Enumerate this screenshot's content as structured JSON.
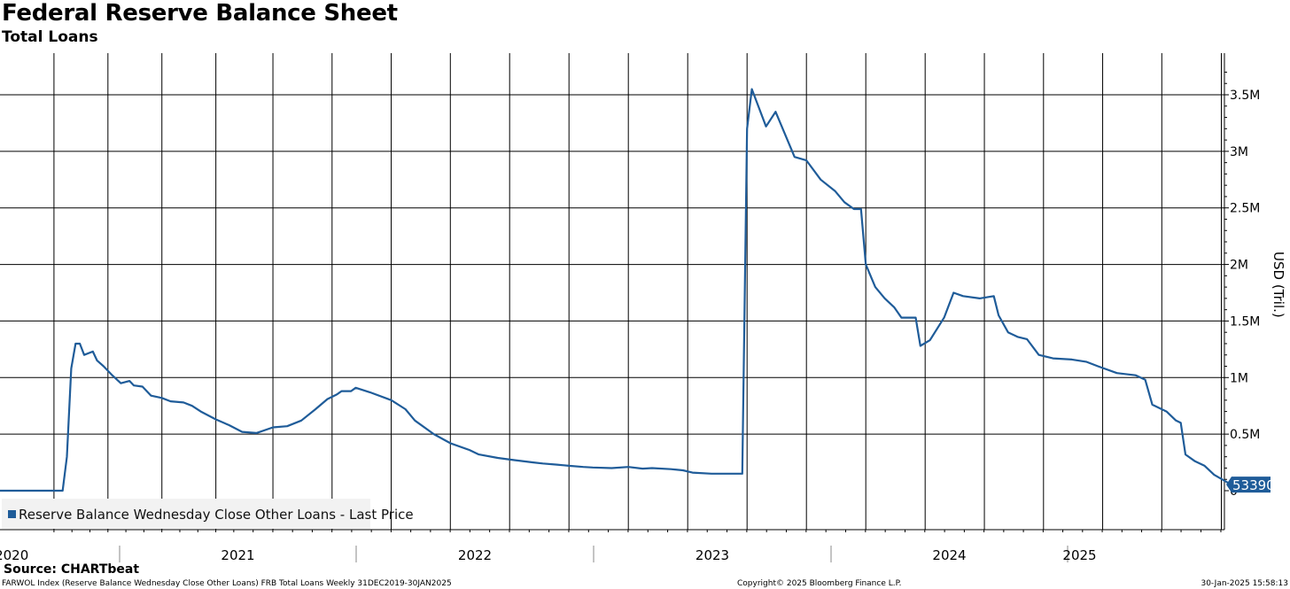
{
  "header": {
    "title": "Federal Reserve Balance Sheet",
    "subtitle": "Total Loans"
  },
  "footer": {
    "source": "Source: CHARTbeat",
    "index_info": "FARWOL Index (Reserve Balance Wednesday Close Other Loans) FRB Total Loans  Weekly 31DEC2019-30JAN2025",
    "copyright": "Copyright© 2025 Bloomberg Finance L.P.",
    "timestamp": "30-Jan-2025 15:58:13"
  },
  "colors": {
    "series": "#1f5c99",
    "grid": "#000000",
    "legend_bg": "#f2f2f2",
    "last_price_badge": "#1f5c99"
  },
  "chart_data": {
    "type": "line",
    "title": "Federal Reserve Balance Sheet",
    "subtitle": "Total Loans",
    "ylabel": "USD (Tril.)",
    "ylim": [
      0,
      3800000
    ],
    "y_ticks": [
      0,
      500000,
      1000000,
      1500000,
      2000000,
      2500000,
      3000000,
      3500000
    ],
    "y_tick_labels": [
      "0",
      "0.5M",
      "1M",
      "1.5M",
      "2M",
      "2.5M",
      "3M",
      "3.5M"
    ],
    "x_range": [
      2019.9,
      2025.2
    ],
    "x_year_labels": [
      {
        "label": "2020",
        "center": 2020.5
      },
      {
        "label": "2021",
        "center": 2021.5
      },
      {
        "label": "2022",
        "center": 2022.5
      },
      {
        "label": "2023",
        "center": 2023.5
      },
      {
        "label": "2024",
        "center": 2024.5
      },
      {
        "label": "2025",
        "center": 2025.05
      }
    ],
    "x_year_boundaries": [
      2021.0,
      2022.0,
      2023.0,
      2024.0,
      2025.0
    ],
    "grid": true,
    "legend": {
      "position": "bottom-left",
      "entries": [
        "Reserve Balance Wednesday Close Other Loans - Last Price"
      ]
    },
    "last_price": "53390",
    "series": [
      {
        "name": "Reserve Balance Wednesday Close Other Loans - Last Price",
        "points": [
          [
            2019.9,
            0
          ],
          [
            2020.19,
            0
          ],
          [
            2020.21,
            300000
          ],
          [
            2020.23,
            1080000
          ],
          [
            2020.25,
            1300000
          ],
          [
            2020.27,
            1300000
          ],
          [
            2020.29,
            1200000
          ],
          [
            2020.33,
            1230000
          ],
          [
            2020.35,
            1150000
          ],
          [
            2020.38,
            1100000
          ],
          [
            2020.42,
            1020000
          ],
          [
            2020.46,
            950000
          ],
          [
            2020.5,
            970000
          ],
          [
            2020.52,
            930000
          ],
          [
            2020.56,
            920000
          ],
          [
            2020.6,
            840000
          ],
          [
            2020.65,
            820000
          ],
          [
            2020.69,
            790000
          ],
          [
            2020.75,
            780000
          ],
          [
            2020.79,
            750000
          ],
          [
            2020.83,
            700000
          ],
          [
            2020.9,
            630000
          ],
          [
            2020.96,
            580000
          ],
          [
            2021.02,
            520000
          ],
          [
            2021.08,
            510000
          ],
          [
            2021.15,
            560000
          ],
          [
            2021.21,
            570000
          ],
          [
            2021.27,
            620000
          ],
          [
            2021.33,
            720000
          ],
          [
            2021.38,
            810000
          ],
          [
            2021.42,
            850000
          ],
          [
            2021.44,
            880000
          ],
          [
            2021.48,
            880000
          ],
          [
            2021.5,
            910000
          ],
          [
            2021.56,
            870000
          ],
          [
            2021.65,
            800000
          ],
          [
            2021.71,
            720000
          ],
          [
            2021.75,
            620000
          ],
          [
            2021.83,
            500000
          ],
          [
            2021.9,
            420000
          ],
          [
            2021.98,
            360000
          ],
          [
            2022.02,
            320000
          ],
          [
            2022.1,
            290000
          ],
          [
            2022.17,
            270000
          ],
          [
            2022.25,
            250000
          ],
          [
            2022.29,
            240000
          ],
          [
            2022.35,
            230000
          ],
          [
            2022.4,
            220000
          ],
          [
            2022.46,
            210000
          ],
          [
            2022.5,
            205000
          ],
          [
            2022.58,
            200000
          ],
          [
            2022.65,
            210000
          ],
          [
            2022.71,
            195000
          ],
          [
            2022.75,
            200000
          ],
          [
            2022.83,
            190000
          ],
          [
            2022.88,
            180000
          ],
          [
            2022.92,
            160000
          ],
          [
            2023.0,
            150000
          ],
          [
            2023.06,
            150000
          ],
          [
            2023.13,
            150000
          ],
          [
            2023.15,
            3200000
          ],
          [
            2023.17,
            3550000
          ],
          [
            2023.23,
            3220000
          ],
          [
            2023.27,
            3350000
          ],
          [
            2023.31,
            3150000
          ],
          [
            2023.35,
            2950000
          ],
          [
            2023.4,
            2920000
          ],
          [
            2023.46,
            2750000
          ],
          [
            2023.52,
            2650000
          ],
          [
            2023.56,
            2550000
          ],
          [
            2023.6,
            2490000
          ],
          [
            2023.63,
            2490000
          ],
          [
            2023.65,
            2000000
          ],
          [
            2023.69,
            1800000
          ],
          [
            2023.73,
            1700000
          ],
          [
            2023.77,
            1620000
          ],
          [
            2023.8,
            1530000
          ],
          [
            2023.86,
            1530000
          ],
          [
            2023.88,
            1280000
          ],
          [
            2023.92,
            1330000
          ],
          [
            2023.98,
            1530000
          ],
          [
            2024.02,
            1750000
          ],
          [
            2024.06,
            1720000
          ],
          [
            2024.13,
            1700000
          ],
          [
            2024.19,
            1720000
          ],
          [
            2024.21,
            1550000
          ],
          [
            2024.25,
            1400000
          ],
          [
            2024.29,
            1360000
          ],
          [
            2024.33,
            1340000
          ],
          [
            2024.38,
            1200000
          ],
          [
            2024.44,
            1170000
          ],
          [
            2024.52,
            1160000
          ],
          [
            2024.58,
            1140000
          ],
          [
            2024.63,
            1100000
          ],
          [
            2024.71,
            1040000
          ],
          [
            2024.79,
            1020000
          ],
          [
            2024.83,
            980000
          ],
          [
            2024.86,
            760000
          ],
          [
            2024.92,
            700000
          ],
          [
            2024.96,
            620000
          ],
          [
            2024.98,
            600000
          ],
          [
            2025.0,
            320000
          ],
          [
            2025.04,
            260000
          ],
          [
            2025.08,
            220000
          ],
          [
            2025.12,
            140000
          ],
          [
            2025.17,
            80000
          ],
          [
            2025.19,
            53390
          ]
        ]
      }
    ]
  }
}
